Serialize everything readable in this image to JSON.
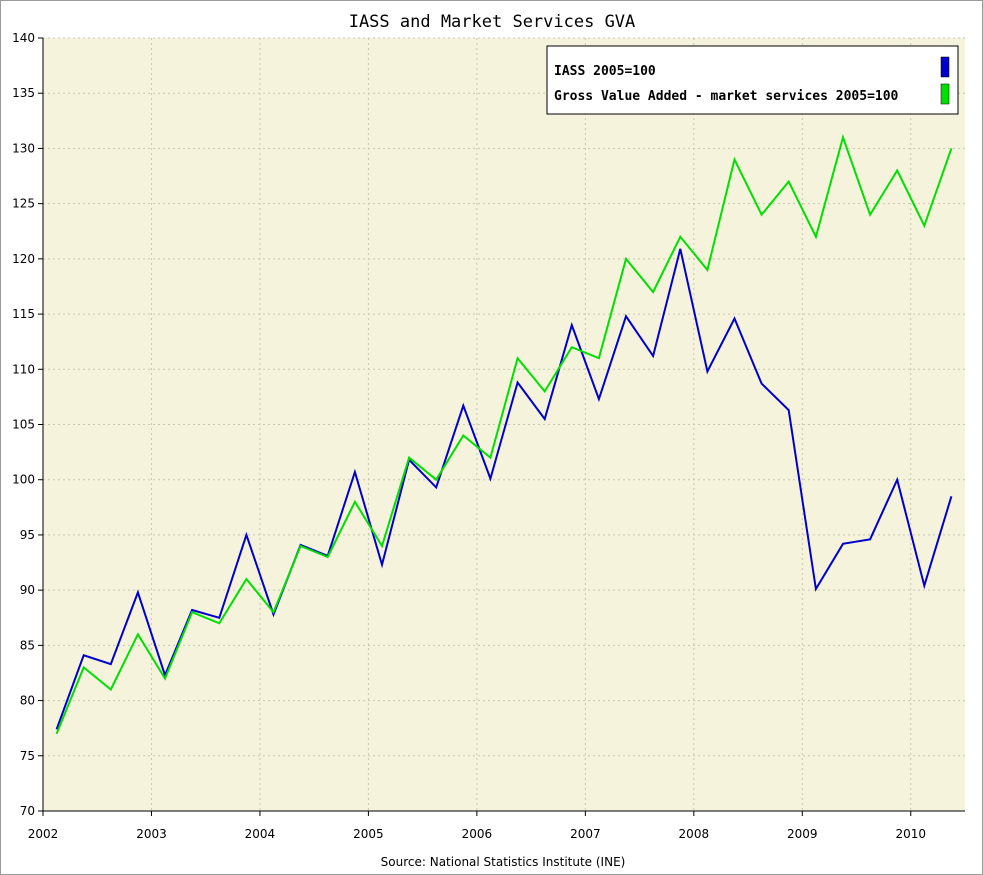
{
  "chart_data": {
    "type": "line",
    "title": "IASS and Market Services GVA",
    "source": "Source: National Statistics Institute (INE)",
    "xlabel": "",
    "ylabel": "",
    "xlim": [
      2002.0,
      2010.5
    ],
    "ylim": [
      70,
      140
    ],
    "x_ticks": [
      "2002",
      "2003",
      "2004",
      "2005",
      "2006",
      "2007",
      "2008",
      "2009",
      "2010"
    ],
    "y_ticks": [
      "70",
      "75",
      "80",
      "85",
      "90",
      "95",
      "100",
      "105",
      "110",
      "115",
      "120",
      "125",
      "130",
      "135",
      "140"
    ],
    "grid": true,
    "legend_position": "top-right",
    "x": [
      2002.125,
      2002.375,
      2002.625,
      2002.875,
      2003.125,
      2003.375,
      2003.625,
      2003.875,
      2004.125,
      2004.375,
      2004.625,
      2004.875,
      2005.125,
      2005.375,
      2005.625,
      2005.875,
      2006.125,
      2006.375,
      2006.625,
      2006.875,
      2007.125,
      2007.375,
      2007.625,
      2007.875,
      2008.125,
      2008.375,
      2008.625,
      2008.875,
      2009.125,
      2009.375,
      2009.625,
      2009.875,
      2010.125,
      2010.375
    ],
    "series": [
      {
        "name": "IASS 2005=100",
        "color": "#0000cc",
        "values": [
          77.4,
          84.1,
          83.3,
          89.8,
          82.3,
          88.2,
          87.5,
          95.0,
          87.8,
          94.1,
          93.1,
          100.7,
          92.3,
          101.8,
          99.3,
          106.7,
          100.1,
          108.8,
          105.5,
          114.0,
          107.3,
          114.8,
          111.2,
          120.9,
          109.8,
          114.6,
          108.7,
          106.3,
          90.1,
          94.2,
          94.6,
          100.0,
          90.4,
          98.5
        ]
      },
      {
        "name": "Gross Value Added - market services 2005=100",
        "color": "#00e000",
        "values": [
          77.0,
          83.0,
          81.0,
          86.0,
          82.0,
          88.0,
          87.0,
          91.0,
          88.0,
          94.0,
          93.0,
          98.0,
          94.0,
          102.0,
          100.0,
          104.0,
          102.0,
          111.0,
          108.0,
          112.0,
          111.0,
          120.0,
          117.0,
          122.0,
          119.0,
          129.0,
          124.0,
          127.0,
          122.0,
          131.0,
          124.0,
          128.0,
          123.0,
          130.0
        ]
      }
    ]
  },
  "colors": {
    "plot_background": "#f5f3dc",
    "grid": "#c8c8b4",
    "axis": "#000000"
  }
}
